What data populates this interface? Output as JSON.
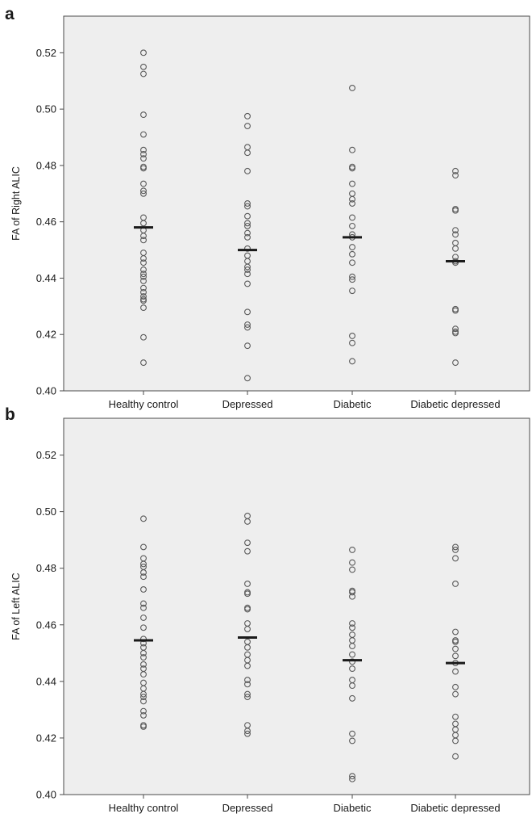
{
  "colors": {
    "plot_background": "#eeeeee",
    "frame": "#4a4a4a",
    "marker_stroke": "#5a5a5a",
    "mean_bar": "#1a1a1a"
  },
  "chart_data": [
    {
      "panel_label": "a",
      "type": "scatter",
      "chart_variant": "dot-plot with group mean bars",
      "xlabel": "",
      "ylabel": "FA of Right ALIC",
      "categories": [
        "Healthy control",
        "Depressed",
        "Diabetic",
        "Diabetic depressed"
      ],
      "ylim": [
        0.4,
        0.533
      ],
      "yticks": [
        0.4,
        0.42,
        0.44,
        0.46,
        0.48,
        0.5,
        0.52
      ],
      "ytick_labels": [
        "0.40",
        "0.42",
        "0.44",
        "0.46",
        "0.48",
        "0.50",
        "0.52"
      ],
      "grid": false,
      "legend": "none",
      "marker": "open-circle",
      "means": [
        0.458,
        0.45,
        0.4545,
        0.446
      ],
      "groups": [
        [
          0.52,
          0.515,
          0.5125,
          0.498,
          0.491,
          0.4855,
          0.484,
          0.4825,
          0.4795,
          0.479,
          0.4735,
          0.471,
          0.47,
          0.4615,
          0.4595,
          0.457,
          0.455,
          0.4535,
          0.449,
          0.447,
          0.4455,
          0.443,
          0.4415,
          0.4405,
          0.439,
          0.4365,
          0.435,
          0.4335,
          0.4325,
          0.432,
          0.4295,
          0.419,
          0.41
        ],
        [
          0.4975,
          0.494,
          0.4865,
          0.4845,
          0.478,
          0.4665,
          0.4655,
          0.462,
          0.4595,
          0.4585,
          0.456,
          0.4545,
          0.4505,
          0.448,
          0.446,
          0.444,
          0.443,
          0.4415,
          0.438,
          0.428,
          0.4235,
          0.4225,
          0.416,
          0.4045
        ],
        [
          0.5075,
          0.4855,
          0.4795,
          0.479,
          0.4735,
          0.47,
          0.468,
          0.4665,
          0.4615,
          0.4585,
          0.4555,
          0.4545,
          0.451,
          0.4485,
          0.4455,
          0.4405,
          0.4395,
          0.4355,
          0.4195,
          0.417,
          0.4105
        ],
        [
          0.478,
          0.4765,
          0.4645,
          0.464,
          0.457,
          0.4555,
          0.4525,
          0.4505,
          0.4475,
          0.446,
          0.4455,
          0.429,
          0.4285,
          0.422,
          0.421,
          0.4205,
          0.41
        ]
      ]
    },
    {
      "panel_label": "b",
      "type": "scatter",
      "chart_variant": "dot-plot with group mean bars",
      "xlabel": "",
      "ylabel": "FA of Left ALIC",
      "categories": [
        "Healthy control",
        "Depressed",
        "Diabetic",
        "Diabetic depressed"
      ],
      "ylim": [
        0.4,
        0.533
      ],
      "yticks": [
        0.4,
        0.42,
        0.44,
        0.46,
        0.48,
        0.5,
        0.52
      ],
      "ytick_labels": [
        "0.40",
        "0.42",
        "0.44",
        "0.46",
        "0.48",
        "0.50",
        "0.52"
      ],
      "grid": false,
      "legend": "none",
      "marker": "open-circle",
      "means": [
        0.4545,
        0.4555,
        0.4475,
        0.4465
      ],
      "groups": [
        [
          0.4975,
          0.4875,
          0.4835,
          0.4815,
          0.4805,
          0.4785,
          0.477,
          0.4725,
          0.4675,
          0.466,
          0.4625,
          0.459,
          0.455,
          0.4535,
          0.452,
          0.45,
          0.4485,
          0.446,
          0.4445,
          0.4425,
          0.4395,
          0.4375,
          0.4355,
          0.4345,
          0.433,
          0.4295,
          0.428,
          0.4245,
          0.424
        ],
        [
          0.4985,
          0.4965,
          0.489,
          0.486,
          0.4745,
          0.4715,
          0.471,
          0.466,
          0.4655,
          0.4605,
          0.4585,
          0.454,
          0.452,
          0.4495,
          0.4475,
          0.4455,
          0.4405,
          0.439,
          0.4355,
          0.4345,
          0.4245,
          0.4225,
          0.4215
        ],
        [
          0.4865,
          0.482,
          0.4795,
          0.472,
          0.4715,
          0.47,
          0.4605,
          0.459,
          0.4565,
          0.4545,
          0.4525,
          0.4495,
          0.447,
          0.4445,
          0.4405,
          0.4385,
          0.434,
          0.4215,
          0.419,
          0.4065,
          0.4055
        ],
        [
          0.4875,
          0.4865,
          0.4835,
          0.4745,
          0.4575,
          0.4545,
          0.454,
          0.4515,
          0.449,
          0.4465,
          0.4435,
          0.438,
          0.4355,
          0.4275,
          0.425,
          0.423,
          0.421,
          0.419,
          0.4135
        ]
      ]
    }
  ]
}
